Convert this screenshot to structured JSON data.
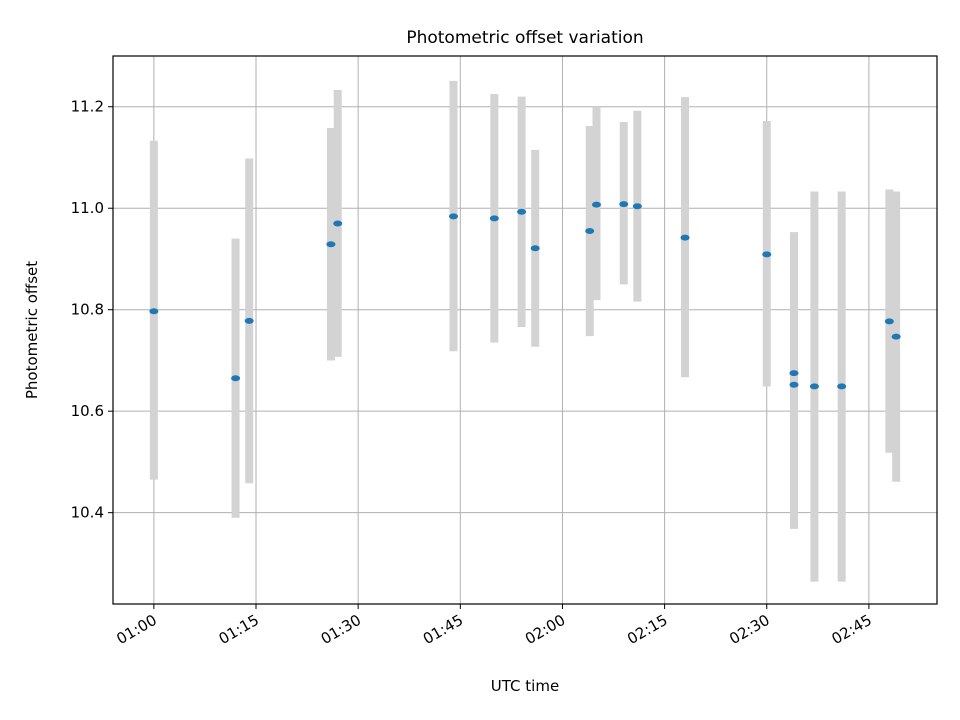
{
  "chart_data": {
    "type": "scatter",
    "title": "Photometric offset variation",
    "xlabel": "UTC time",
    "ylabel": "Photometric offset",
    "x_ticks": [
      "01:00",
      "01:15",
      "01:30",
      "01:45",
      "02:00",
      "02:15",
      "02:30",
      "02:45"
    ],
    "xlim": [
      "00:54",
      "02:55"
    ],
    "y_ticks": [
      "10.4",
      "10.6",
      "10.8",
      "11.0",
      "11.2"
    ],
    "ylim": [
      10.22,
      11.3
    ],
    "grid": true,
    "errorbar_color": "#d3d3d3",
    "point_color": "#1f77b4",
    "points": [
      {
        "x": "01:00",
        "y": 10.797,
        "ylow": 10.465,
        "yhigh": 11.133
      },
      {
        "x": "01:12",
        "y": 10.665,
        "ylow": 10.39,
        "yhigh": 10.94
      },
      {
        "x": "01:14",
        "y": 10.778,
        "ylow": 10.458,
        "yhigh": 11.098
      },
      {
        "x": "01:26",
        "y": 10.929,
        "ylow": 10.7,
        "yhigh": 11.158
      },
      {
        "x": "01:27",
        "y": 10.97,
        "ylow": 10.707,
        "yhigh": 11.233
      },
      {
        "x": "01:44",
        "y": 10.984,
        "ylow": 10.718,
        "yhigh": 11.251
      },
      {
        "x": "01:50",
        "y": 10.98,
        "ylow": 10.735,
        "yhigh": 11.225
      },
      {
        "x": "01:54",
        "y": 10.993,
        "ylow": 10.766,
        "yhigh": 11.22
      },
      {
        "x": "01:56",
        "y": 10.921,
        "ylow": 10.727,
        "yhigh": 11.115
      },
      {
        "x": "02:04",
        "y": 10.955,
        "ylow": 10.748,
        "yhigh": 11.162
      },
      {
        "x": "02:05",
        "y": 11.007,
        "ylow": 10.819,
        "yhigh": 11.2
      },
      {
        "x": "02:09",
        "y": 11.008,
        "ylow": 10.85,
        "yhigh": 11.17
      },
      {
        "x": "02:11",
        "y": 11.004,
        "ylow": 10.816,
        "yhigh": 11.192
      },
      {
        "x": "02:18",
        "y": 10.942,
        "ylow": 10.667,
        "yhigh": 11.219
      },
      {
        "x": "02:30",
        "y": 10.909,
        "ylow": 10.649,
        "yhigh": 11.172
      },
      {
        "x": "02:34",
        "y": 10.675,
        "ylow": 10.395,
        "yhigh": 10.953
      },
      {
        "x": "02:34",
        "y": 10.652,
        "ylow": 10.368,
        "yhigh": 10.937
      },
      {
        "x": "02:37",
        "y": 10.649,
        "ylow": 10.264,
        "yhigh": 11.033
      },
      {
        "x": "02:41",
        "y": 10.649,
        "ylow": 10.264,
        "yhigh": 11.033
      },
      {
        "x": "02:48",
        "y": 10.777,
        "ylow": 10.518,
        "yhigh": 11.037
      },
      {
        "x": "02:49",
        "y": 10.747,
        "ylow": 10.461,
        "yhigh": 11.033
      }
    ]
  }
}
